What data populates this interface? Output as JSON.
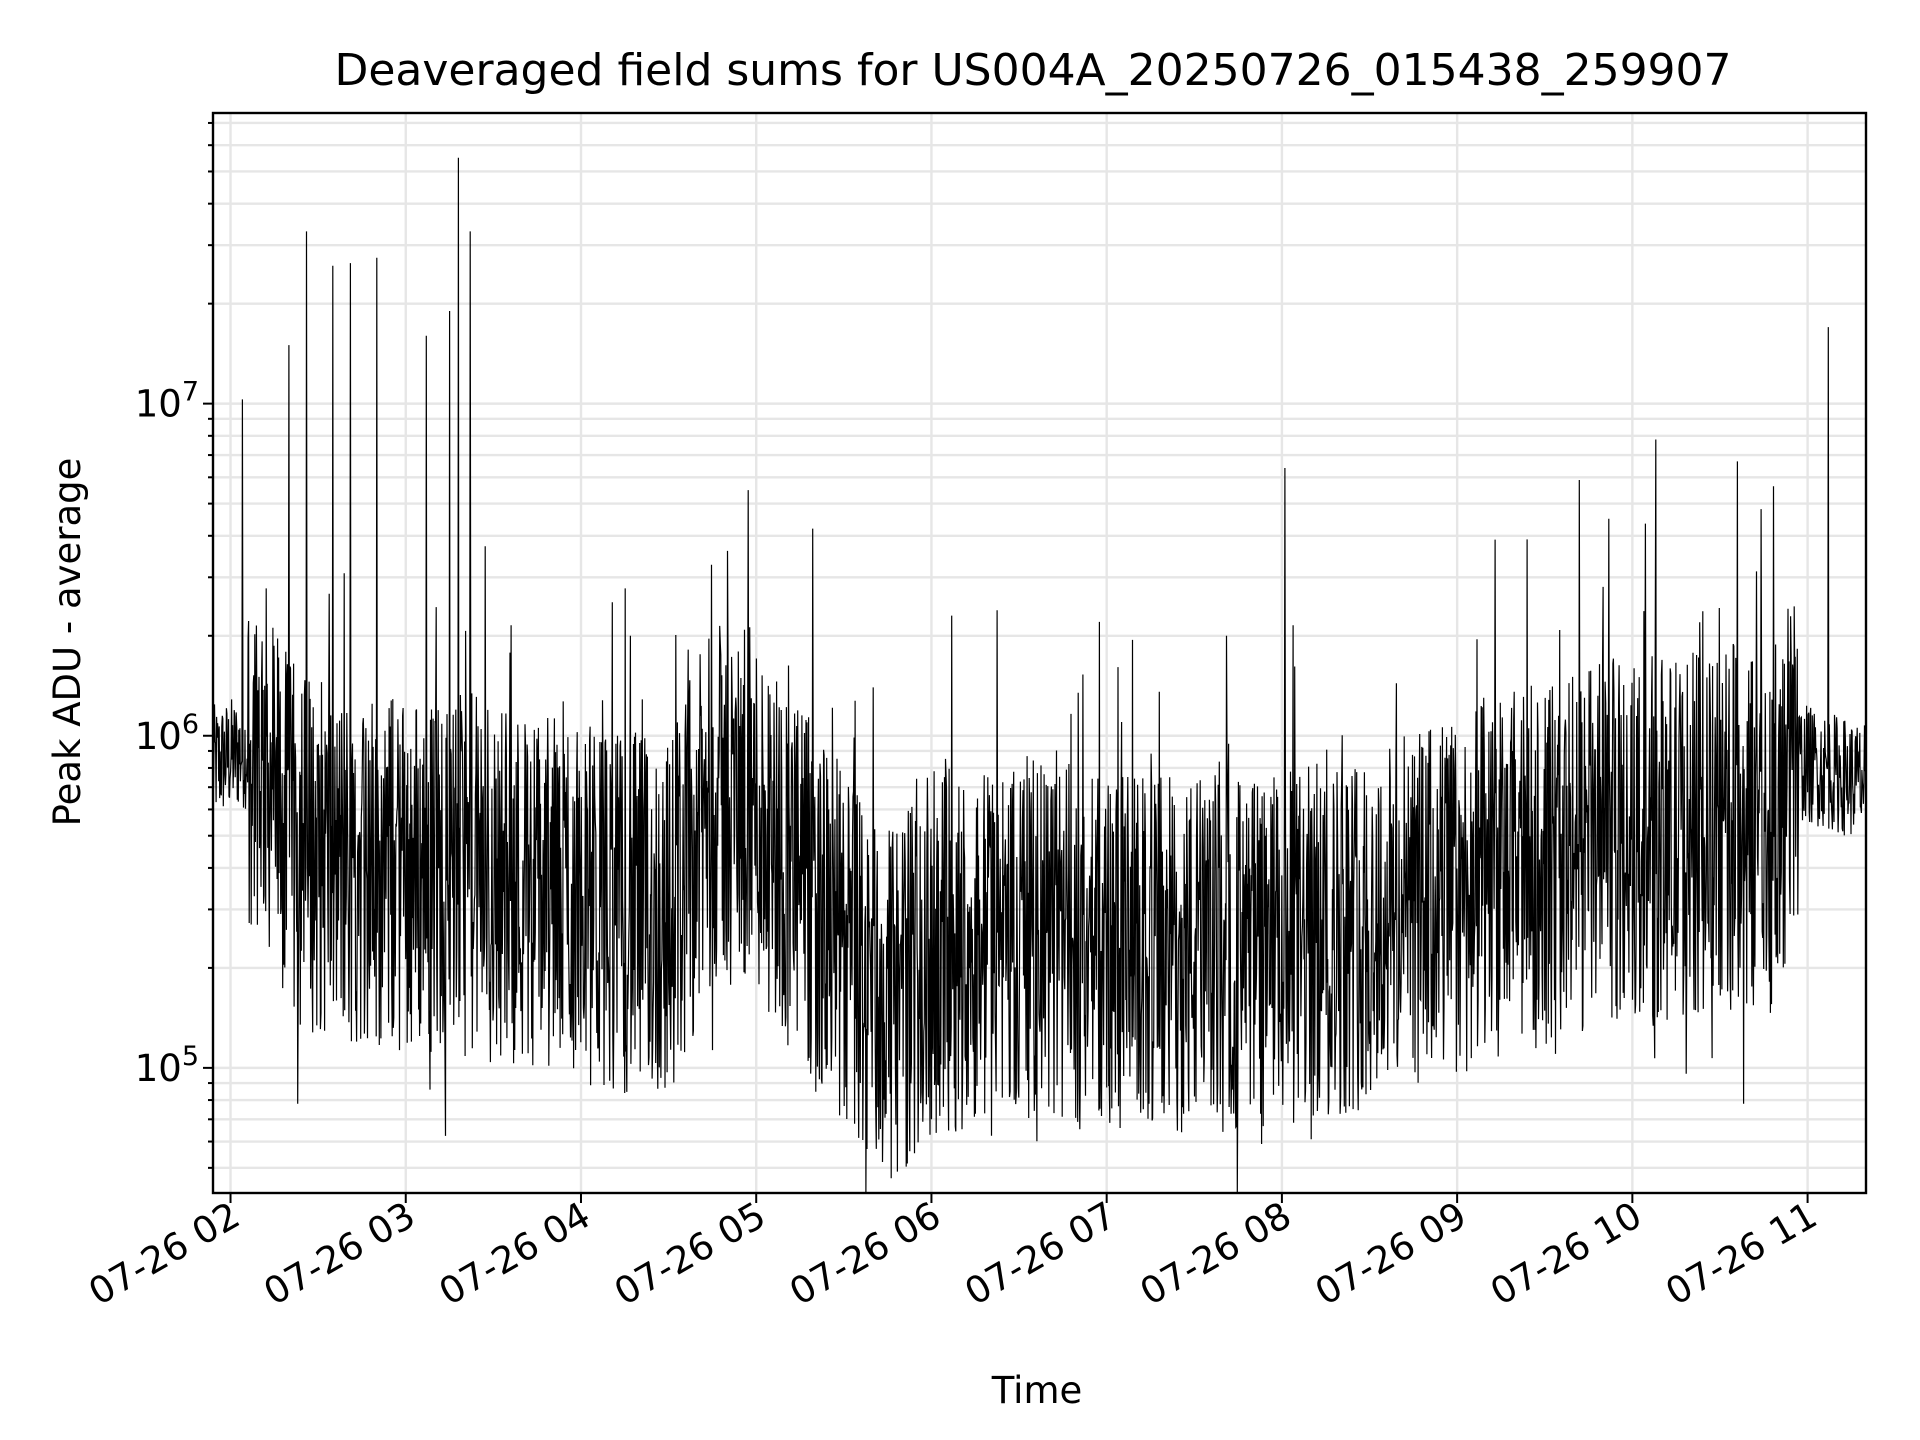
{
  "chart_data": {
    "type": "line",
    "title": "Deaveraged field sums for US004A_20250726_015438_259907",
    "xlabel": "Time",
    "ylabel": "Peak ADU - average",
    "yscale": "log",
    "grid": true,
    "grid_minor_y": true,
    "line_color": "#000000",
    "xlim": [
      "2025-07-26 01:54",
      "2025-07-26 11:20"
    ],
    "ylim": [
      42000,
      75000000
    ],
    "x_ticks": [
      {
        "value": "2025-07-26 02:00",
        "label": "07-26 02"
      },
      {
        "value": "2025-07-26 03:00",
        "label": "07-26 03"
      },
      {
        "value": "2025-07-26 04:00",
        "label": "07-26 04"
      },
      {
        "value": "2025-07-26 05:00",
        "label": "07-26 05"
      },
      {
        "value": "2025-07-26 06:00",
        "label": "07-26 06"
      },
      {
        "value": "2025-07-26 07:00",
        "label": "07-26 07"
      },
      {
        "value": "2025-07-26 08:00",
        "label": "07-26 08"
      },
      {
        "value": "2025-07-26 09:00",
        "label": "07-26 09"
      },
      {
        "value": "2025-07-26 10:00",
        "label": "07-26 10"
      },
      {
        "value": "2025-07-26 11:00",
        "label": "07-26 11"
      }
    ],
    "y_ticks": [
      {
        "value": 100000,
        "base": "10",
        "exp": "5"
      },
      {
        "value": 1000000,
        "base": "10",
        "exp": "6"
      },
      {
        "value": 10000000,
        "base": "10",
        "exp": "7"
      }
    ],
    "baseline": [
      [
        "2025-07-26 01:54",
        820000
      ],
      [
        "2025-07-26 02:10",
        950000
      ],
      [
        "2025-07-26 02:20",
        480000
      ],
      [
        "2025-07-26 02:40",
        400000
      ],
      [
        "2025-07-26 03:30",
        380000
      ],
      [
        "2025-07-26 04:10",
        300000
      ],
      [
        "2025-07-26 04:30",
        280000
      ],
      [
        "2025-07-26 04:45",
        620000
      ],
      [
        "2025-07-26 05:00",
        600000
      ],
      [
        "2025-07-26 05:20",
        300000
      ],
      [
        "2025-07-26 05:45",
        150000
      ],
      [
        "2025-07-26 06:00",
        220000
      ],
      [
        "2025-07-26 06:30",
        250000
      ],
      [
        "2025-07-26 07:00",
        220000
      ],
      [
        "2025-07-26 08:00",
        220000
      ],
      [
        "2025-07-26 09:00",
        330000
      ],
      [
        "2025-07-26 09:50",
        480000
      ],
      [
        "2025-07-26 10:50",
        520000
      ],
      [
        "2025-07-26 10:55",
        850000
      ],
      [
        "2025-07-26 11:20",
        720000
      ]
    ],
    "spikes": [
      [
        "2025-07-26 02:04",
        10300000
      ],
      [
        "2025-07-26 02:20",
        15000000
      ],
      [
        "2025-07-26 02:26",
        33000000
      ],
      [
        "2025-07-26 02:35",
        26000000
      ],
      [
        "2025-07-26 02:41",
        26500000
      ],
      [
        "2025-07-26 02:50",
        27500000
      ],
      [
        "2025-07-26 03:07",
        16000000
      ],
      [
        "2025-07-26 03:15",
        19000000
      ],
      [
        "2025-07-26 03:18",
        55000000
      ],
      [
        "2025-07-26 03:22",
        33000000
      ],
      [
        "2025-07-26 03:36",
        2150000
      ],
      [
        "2025-07-26 04:17",
        2000000
      ],
      [
        "2025-07-26 06:07",
        2300000
      ],
      [
        "2025-07-26 07:41",
        2000000
      ],
      [
        "2025-07-26 08:01",
        6400000
      ],
      [
        "2025-07-26 09:24",
        3900000
      ],
      [
        "2025-07-26 09:52",
        4500000
      ],
      [
        "2025-07-26 10:08",
        7800000
      ],
      [
        "2025-07-26 10:36",
        6700000
      ],
      [
        "2025-07-26 11:07",
        17000000
      ]
    ],
    "dips": [
      [
        "2025-07-26 02:23",
        78000
      ],
      [
        "2025-07-26 05:38",
        57000
      ],
      [
        "2025-07-26 06:00",
        70000
      ],
      [
        "2025-07-26 07:53",
        59000
      ],
      [
        "2025-07-26 08:10",
        61000
      ],
      [
        "2025-07-26 10:38",
        78000
      ]
    ]
  }
}
